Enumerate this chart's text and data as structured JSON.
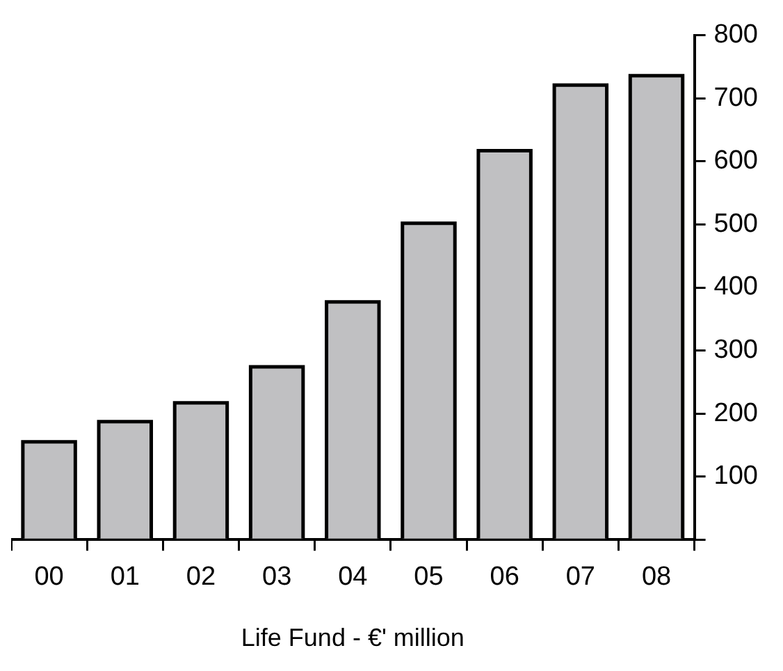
{
  "chart_data": {
    "type": "bar",
    "xlabel": "Life Fund - €' million",
    "categories": [
      "00",
      "01",
      "02",
      "03",
      "04",
      "05",
      "06",
      "07",
      "08"
    ],
    "values": [
      155,
      187,
      217,
      274,
      377,
      502,
      617,
      721,
      736
    ],
    "color": "#c0c0c2",
    "ylim": [
      0,
      800
    ],
    "yticks": [
      {
        "value": 0,
        "label": null
      },
      100,
      200,
      300,
      400,
      500,
      600,
      700,
      800
    ],
    "grid": false,
    "legend": false
  }
}
